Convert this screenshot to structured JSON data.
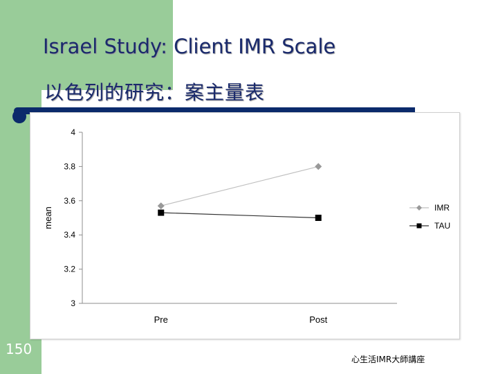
{
  "slide": {
    "title_en": "Israel Study: Client IMR Scale",
    "title_zh": "以色列的研究：案主量表",
    "page_number": "150",
    "footer": "心生活IMR大師講座"
  },
  "colors": {
    "green": "#99cc99",
    "navy": "#0b2a6b",
    "imr": "#999999",
    "tau": "#000000"
  },
  "chart_data": {
    "type": "line",
    "categories": [
      "Pre",
      "Post"
    ],
    "ylabel": "mean",
    "ylim": [
      3,
      4
    ],
    "yticks": [
      "3",
      "3.2",
      "3.4",
      "3.6",
      "3.8",
      "4"
    ],
    "grid": false,
    "legend_position": "right",
    "series": [
      {
        "name": "IMR",
        "values": [
          3.57,
          3.8
        ],
        "marker": "diamond",
        "color": "#999999"
      },
      {
        "name": "TAU",
        "values": [
          3.53,
          3.5
        ],
        "marker": "square",
        "color": "#000000"
      }
    ]
  }
}
